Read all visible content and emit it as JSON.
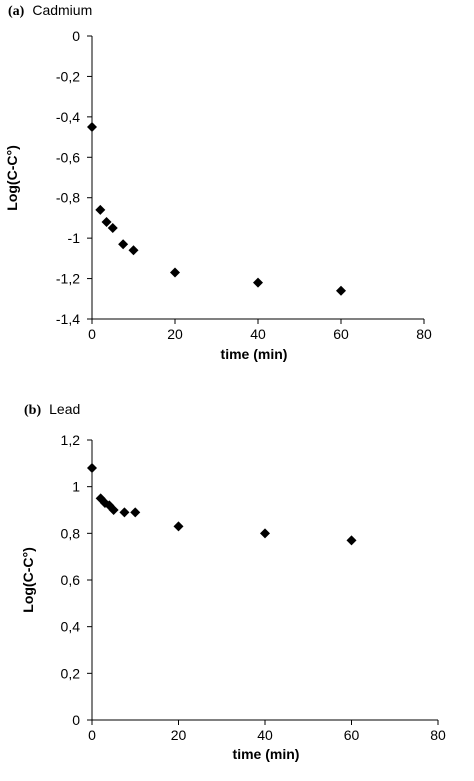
{
  "chart_data": [
    {
      "type": "scatter",
      "panel_letter": "(a)",
      "title": "Cadmium",
      "xlabel": "time (min)",
      "ylabel": "Log(C-C°)",
      "xlim": [
        0,
        80
      ],
      "ylim": [
        -1.4,
        0
      ],
      "x_ticks": [
        0,
        20,
        40,
        60,
        80
      ],
      "y_ticks": [
        0,
        -0.2,
        -0.4,
        -0.6,
        -0.8,
        -1,
        -1.2,
        -1.4
      ],
      "x_tick_labels": [
        "0",
        "20",
        "40",
        "60",
        "80"
      ],
      "y_tick_labels": [
        "0",
        "-0,2",
        "-0,4",
        "-0,6",
        "-0,8",
        "-1",
        "-1,2",
        "-1,4"
      ],
      "grid": false,
      "marker": "diamond",
      "color": "#000000",
      "points": [
        {
          "x": 0,
          "y": -0.45
        },
        {
          "x": 2,
          "y": -0.86
        },
        {
          "x": 3.5,
          "y": -0.92
        },
        {
          "x": 5,
          "y": -0.95
        },
        {
          "x": 7.5,
          "y": -1.03
        },
        {
          "x": 10,
          "y": -1.06
        },
        {
          "x": 20,
          "y": -1.17
        },
        {
          "x": 40,
          "y": -1.22
        },
        {
          "x": 60,
          "y": -1.26
        }
      ]
    },
    {
      "type": "scatter",
      "panel_letter": "(b)",
      "title": "Lead",
      "xlabel": "time (min)",
      "ylabel": "Log(C-C°)",
      "xlim": [
        0,
        80
      ],
      "ylim": [
        0,
        1.2
      ],
      "x_ticks": [
        0,
        20,
        40,
        60,
        80
      ],
      "y_ticks": [
        0,
        0.2,
        0.4,
        0.6,
        0.8,
        1,
        1.2
      ],
      "x_tick_labels": [
        "0",
        "20",
        "40",
        "60",
        "80"
      ],
      "y_tick_labels": [
        "0",
        "0,2",
        "0,4",
        "0,6",
        "0,8",
        "1",
        "1,2"
      ],
      "grid": false,
      "marker": "diamond",
      "color": "#000000",
      "points": [
        {
          "x": 0,
          "y": 1.08
        },
        {
          "x": 2,
          "y": 0.95
        },
        {
          "x": 3,
          "y": 0.93
        },
        {
          "x": 4,
          "y": 0.92
        },
        {
          "x": 5,
          "y": 0.9
        },
        {
          "x": 7.5,
          "y": 0.89
        },
        {
          "x": 10,
          "y": 0.89
        },
        {
          "x": 20,
          "y": 0.83
        },
        {
          "x": 40,
          "y": 0.8
        },
        {
          "x": 60,
          "y": 0.77
        }
      ]
    }
  ]
}
